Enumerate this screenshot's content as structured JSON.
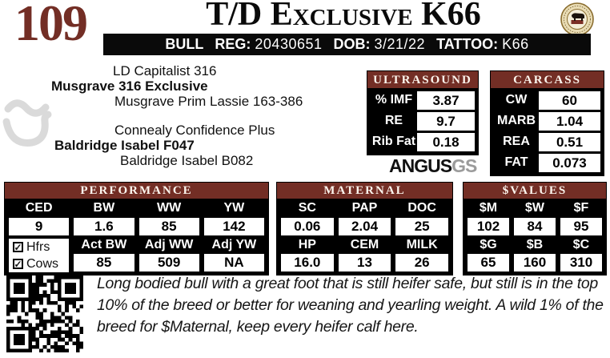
{
  "colors": {
    "maroon": "#732e25",
    "black": "#0d0d0d"
  },
  "header": {
    "lot_number": "109",
    "title": "T/D Exclusive K66",
    "info_bar": {
      "sex": "BULL",
      "reg_label": "REG:",
      "reg_value": "20430651",
      "dob_label": "DOB:",
      "dob_value": "3/21/22",
      "tattoo_label": "TATTOO:",
      "tattoo_value": "K66"
    }
  },
  "pedigree": {
    "sire_sire": "LD Capitalist 316",
    "sire": "Musgrave 316 Exclusive",
    "sire_dam": "Musgrave Prim Lassie 163-386",
    "dam_sire": "Connealy Confidence Plus",
    "dam": "Baldridge Isabel F047",
    "dam_dam": "Baldridge Isabel B082"
  },
  "ultrasound": {
    "title": "ULTRASOUND",
    "rows": [
      {
        "label": "% IMF",
        "value": "3.87"
      },
      {
        "label": "RE",
        "value": "9.7"
      },
      {
        "label": "Rib Fat",
        "value": "0.18"
      }
    ]
  },
  "angus_gs_logo": {
    "part1": "ANGUS",
    "part2": "GS"
  },
  "carcass": {
    "title": "CARCASS",
    "rows": [
      {
        "label": "CW",
        "value": "60"
      },
      {
        "label": "MARB",
        "value": "1.04"
      },
      {
        "label": "REA",
        "value": "0.51"
      },
      {
        "label": "FAT",
        "value": "0.073"
      }
    ]
  },
  "performance": {
    "title": "PERFORMANCE",
    "epd_headers": [
      "CED",
      "BW",
      "WW",
      "YW"
    ],
    "epd_values": [
      "9",
      "1.6",
      "85",
      "142"
    ],
    "checkboxes": [
      {
        "label": "Hfrs",
        "checked": true,
        "check_glyph": "✓"
      },
      {
        "label": "Cows",
        "checked": true,
        "check_glyph": "✓"
      }
    ],
    "actual_headers": [
      "Act BW",
      "Adj WW",
      "Adj YW"
    ],
    "actual_values": [
      "85",
      "509",
      "NA"
    ]
  },
  "maternal": {
    "title": "MATERNAL",
    "row1_headers": [
      "SC",
      "PAP",
      "DOC"
    ],
    "row1_values": [
      "0.06",
      "2.04",
      "25"
    ],
    "row2_headers": [
      "HP",
      "CEM",
      "MILK"
    ],
    "row2_values": [
      "16.0",
      "13",
      "26"
    ]
  },
  "values_table": {
    "title": "$VALUES",
    "row1_headers": [
      "$M",
      "$W",
      "$F"
    ],
    "row1_values": [
      "102",
      "84",
      "95"
    ],
    "row2_headers": [
      "$G",
      "$B",
      "$C"
    ],
    "row2_values": [
      "65",
      "160",
      "310"
    ]
  },
  "description": "Long bodied bull with a great foot that is still heifer safe, but still is in the top 10% of the breed or better for weaning and yearling weight. A wild 1% of the breed for $Maternal, keep every heifer calf here."
}
